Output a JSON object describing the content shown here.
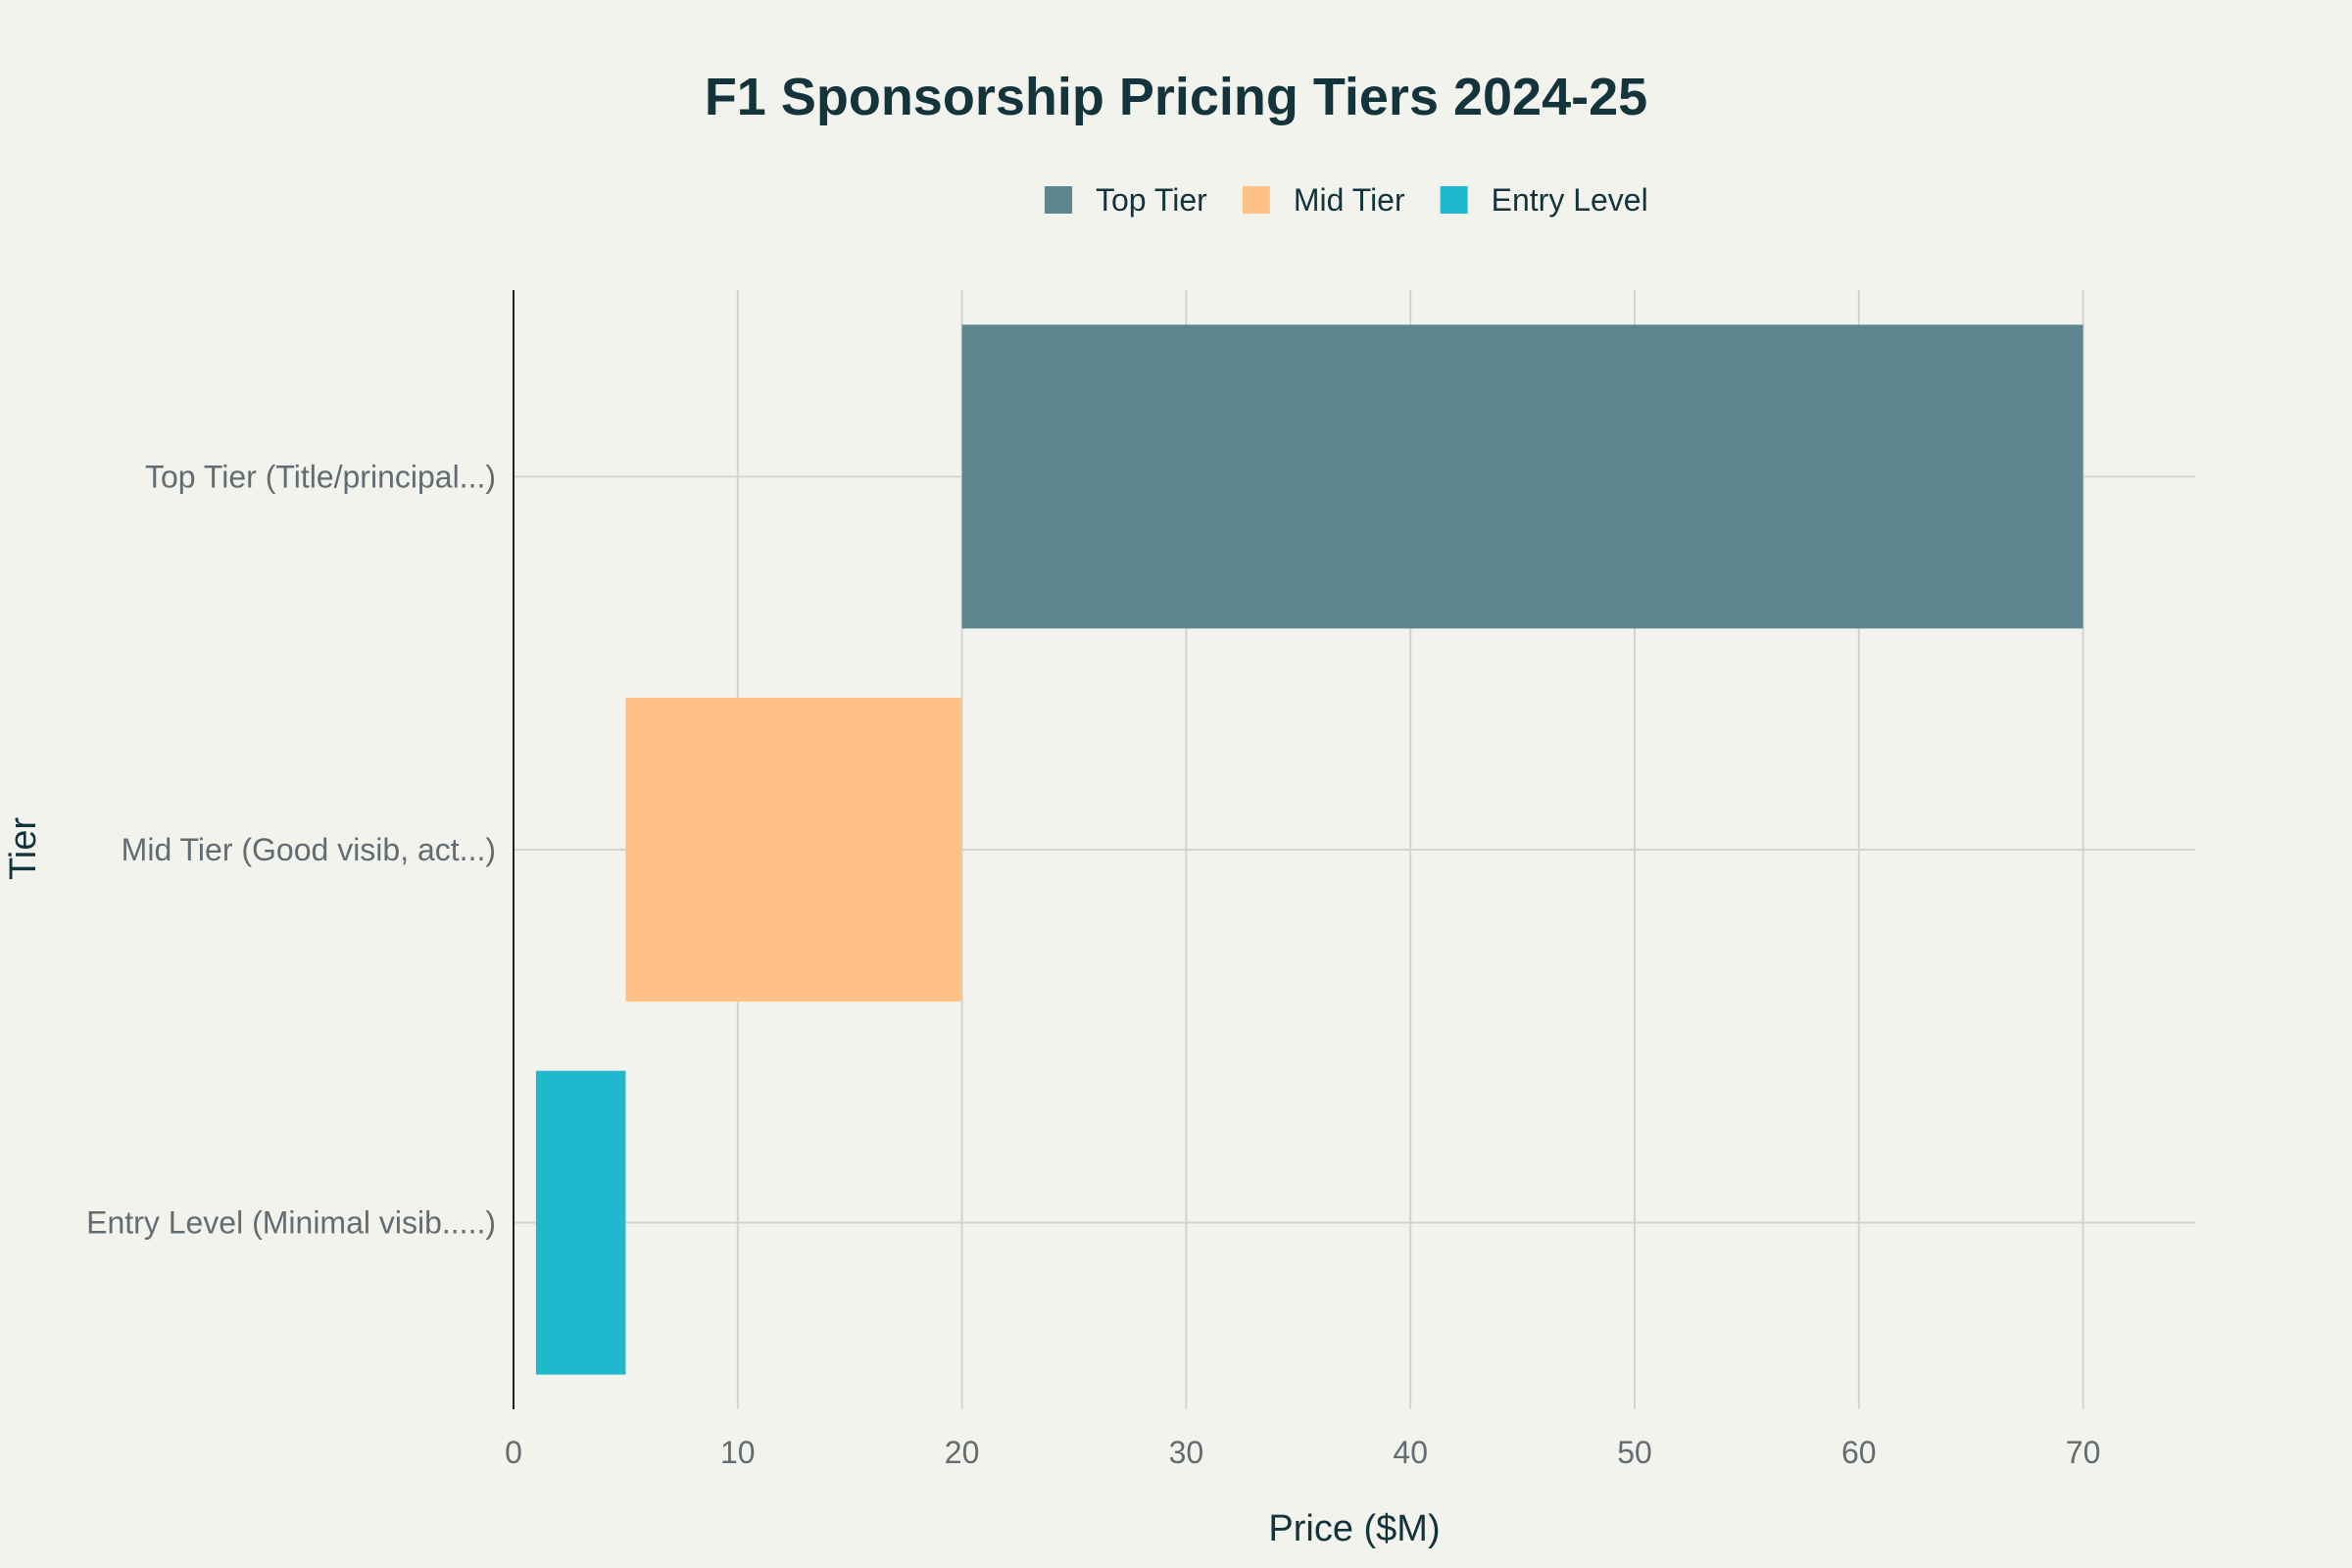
{
  "chart_data": {
    "type": "bar",
    "orientation": "horizontal",
    "layout": "floating range bars",
    "title": "F1 Sponsorship Pricing Tiers 2024-25",
    "xlabel": "Price ($M)",
    "ylabel": "Tier",
    "xlim": [
      0,
      75
    ],
    "xticks": [
      0,
      10,
      20,
      30,
      40,
      50,
      60,
      70
    ],
    "grid": true,
    "legend_position": "top",
    "categories": [
      "Top Tier (Title/principal...)",
      "Mid Tier (Good visib, act...)",
      "Entry Level (Minimal visib.....)"
    ],
    "series": [
      {
        "name": "Top Tier",
        "color": "#5d878f",
        "category_index": 0,
        "start": 20,
        "end": 70
      },
      {
        "name": "Mid Tier",
        "color": "#ffc185",
        "category_index": 1,
        "start": 5,
        "end": 20
      },
      {
        "name": "Entry Level",
        "color": "#1fb8cd",
        "category_index": 2,
        "start": 1,
        "end": 5
      }
    ]
  }
}
